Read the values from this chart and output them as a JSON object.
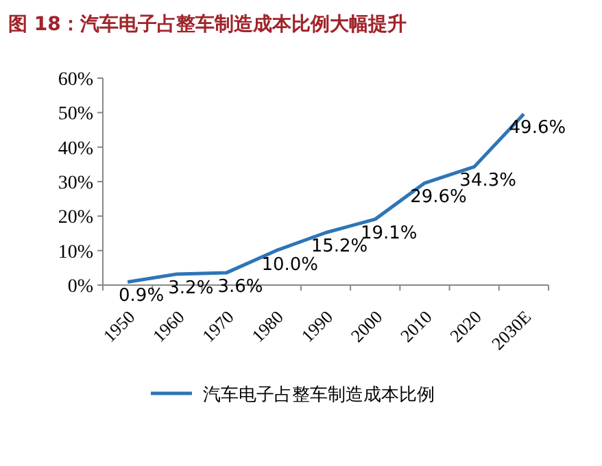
{
  "chart_data": {
    "type": "line",
    "title": "图 18：汽车电子占整车制造成本比例大幅提升",
    "categories": [
      "1950",
      "1960",
      "1970",
      "1980",
      "1990",
      "2000",
      "2010",
      "2020",
      "2030E"
    ],
    "series": [
      {
        "name": "汽车电子占整车制造成本比例",
        "color": "#2e75b6",
        "values": [
          0.9,
          3.2,
          3.6,
          10.0,
          15.2,
          19.1,
          29.6,
          34.3,
          49.6
        ],
        "value_labels": [
          "0.9%",
          "3.2%",
          "3.6%",
          "10.0%",
          "15.2%",
          "19.1%",
          "29.6%",
          "34.3%",
          "49.6%"
        ]
      }
    ],
    "ylim": [
      0,
      60
    ],
    "yticks": [
      {
        "value": 0,
        "label": "0%"
      },
      {
        "value": 10,
        "label": "10%"
      },
      {
        "value": 20,
        "label": "20%"
      },
      {
        "value": 30,
        "label": "30%"
      },
      {
        "value": 40,
        "label": "40%"
      },
      {
        "value": 50,
        "label": "50%"
      },
      {
        "value": 60,
        "label": "60%"
      }
    ],
    "legend": "bottom"
  }
}
